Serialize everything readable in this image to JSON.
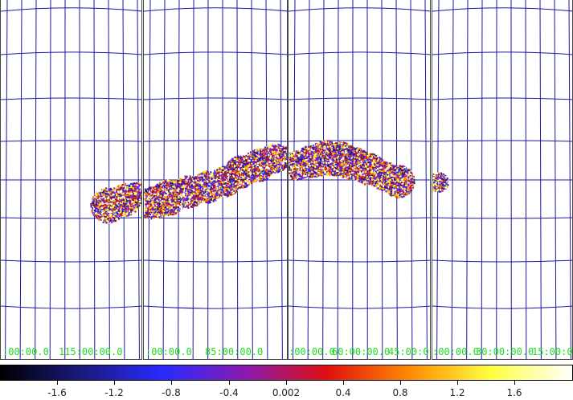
{
  "panels": [
    {
      "name": "panel-1",
      "labels": [
        ":00:00.0",
        "115:00:00.0"
      ]
    },
    {
      "name": "panel-2",
      "labels": [
        ":00:00.0",
        "85:00:00.0"
      ]
    },
    {
      "name": "panel-3",
      "labels": [
        ":00:00.0",
        "60:00:00.0",
        "45:00:0"
      ]
    },
    {
      "name": "panel-4",
      "labels": [
        ":00:00.0",
        "30:00:00.0",
        "15:00:0"
      ]
    }
  ],
  "colorbar": {
    "ticks": [
      "-1.6",
      "-1.2",
      "-0.8",
      "-0.4",
      "0.002",
      "0.4",
      "0.8",
      "1.2",
      "1.6"
    ],
    "colors": [
      "#000000",
      "#1a1a80",
      "#2a2aff",
      "#8a1ab0",
      "#e01010",
      "#ff8a00",
      "#ffff40",
      "#ffffff"
    ]
  },
  "colors": {
    "grid": "#1a1aa0",
    "label": "#22dd22",
    "frame": "#444444"
  }
}
